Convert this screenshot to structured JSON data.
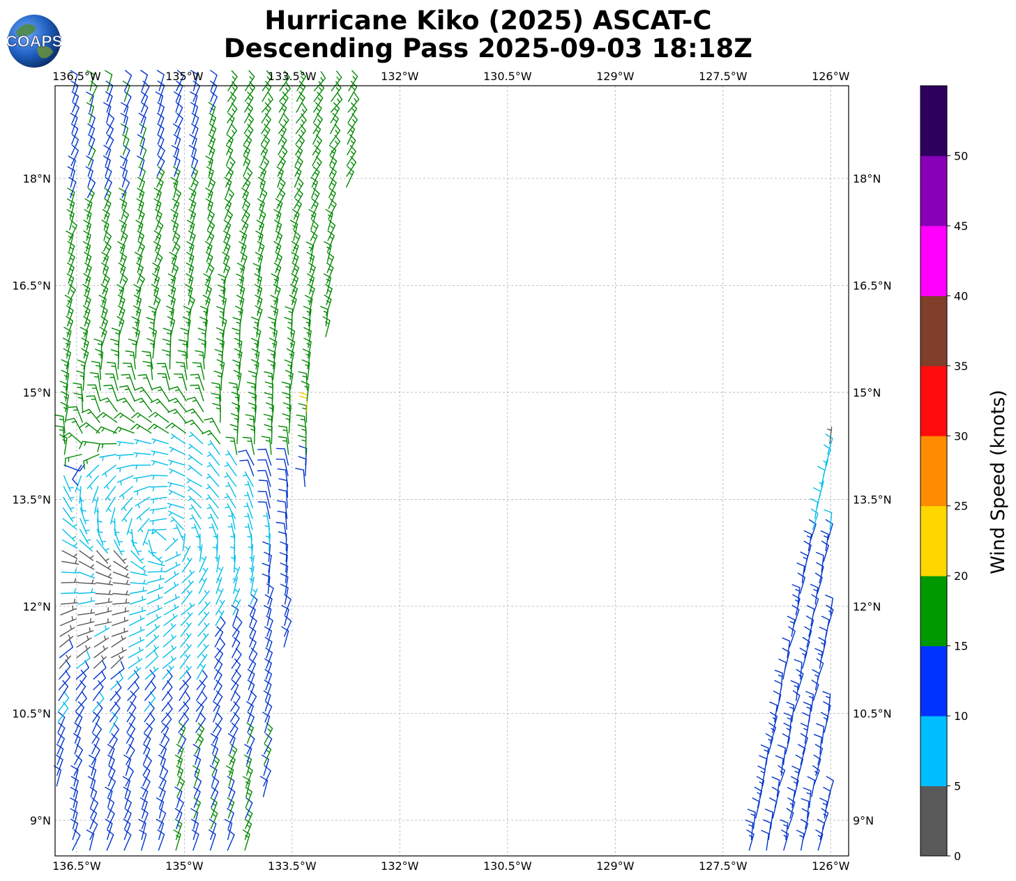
{
  "header": {
    "title_line1": "Hurricane Kiko (2025) ASCAT-C",
    "title_line2": "Descending Pass 2025-09-03 18:18Z"
  },
  "logo": {
    "text": "COAPS"
  },
  "map": {
    "lon_range": [
      -136.8,
      -125.75
    ],
    "lat_range": [
      8.5,
      19.3
    ],
    "lon_ticks": [
      {
        "value": -136.5,
        "label": "136.5°W"
      },
      {
        "value": -135.0,
        "label": "135°W"
      },
      {
        "value": -133.5,
        "label": "133.5°W"
      },
      {
        "value": -132.0,
        "label": "132°W"
      },
      {
        "value": -130.5,
        "label": "130.5°W"
      },
      {
        "value": -129.0,
        "label": "129°W"
      },
      {
        "value": -127.5,
        "label": "127.5°W"
      },
      {
        "value": -126.0,
        "label": "126°W"
      }
    ],
    "lat_ticks": [
      {
        "value": 9.0,
        "label": "9°N"
      },
      {
        "value": 10.5,
        "label": "10.5°N"
      },
      {
        "value": 12.0,
        "label": "12°N"
      },
      {
        "value": 13.5,
        "label": "13.5°N"
      },
      {
        "value": 15.0,
        "label": "15°N"
      },
      {
        "value": 16.5,
        "label": "16.5°N"
      },
      {
        "value": 18.0,
        "label": "18°N"
      }
    ],
    "grid": true,
    "grid_style": "dashed",
    "swaths": [
      {
        "name": "west-swath",
        "lat_range": [
          8.5,
          19.3
        ],
        "lon_west_south": -136.8,
        "lon_east_south": -133.85,
        "lon_west_north": -136.55,
        "lon_east_north": -132.4
      },
      {
        "name": "east-swath",
        "lat_range": [
          8.5,
          14.6
        ],
        "lon_west_south": -127.15,
        "lon_east_south": -125.75,
        "lon_west_north": -125.95,
        "lon_east_north": -125.75
      }
    ],
    "circulation_center": {
      "lon": -135.3,
      "lat": 12.9
    },
    "wind_field_regions": [
      {
        "speed_band": "calm",
        "lon_range": [
          -136.8,
          -135.9
        ],
        "lat_range": [
          11.1,
          12.9
        ]
      },
      {
        "speed_band": "light",
        "lon_range": [
          -136.8,
          -134.6
        ],
        "lat_range": [
          10.9,
          13.9
        ]
      },
      {
        "speed_band": "tropical-storm",
        "lon_range": [
          -133.8,
          -132.4
        ],
        "lat_range": [
          14.6,
          17.1
        ]
      }
    ]
  },
  "colorbar": {
    "label": "Wind Speed (knots)",
    "ticks": [
      "0",
      "5",
      "10",
      "15",
      "20",
      "25",
      "30",
      "35",
      "40",
      "45",
      "50"
    ],
    "bins": [
      {
        "min": 0,
        "max": 5,
        "color": "#595959"
      },
      {
        "min": 5,
        "max": 10,
        "color": "#00bfff"
      },
      {
        "min": 10,
        "max": 15,
        "color": "#0033ff"
      },
      {
        "min": 15,
        "max": 20,
        "color": "#009900"
      },
      {
        "min": 20,
        "max": 25,
        "color": "#ffd700"
      },
      {
        "min": 25,
        "max": 30,
        "color": "#ff8c00"
      },
      {
        "min": 30,
        "max": 35,
        "color": "#ff0d0d"
      },
      {
        "min": 35,
        "max": 40,
        "color": "#7f3f2a"
      },
      {
        "min": 40,
        "max": 45,
        "color": "#ff00ff"
      },
      {
        "min": 45,
        "max": 50,
        "color": "#8800b8"
      },
      {
        "min": 50,
        "max": 55,
        "color": "#2e005e"
      }
    ],
    "barb_colors": {
      "calm": "#555555",
      "light": "#00bfea",
      "moderate": "#0033cc",
      "fresh": "#008800",
      "strong": "#ffcc00"
    }
  }
}
